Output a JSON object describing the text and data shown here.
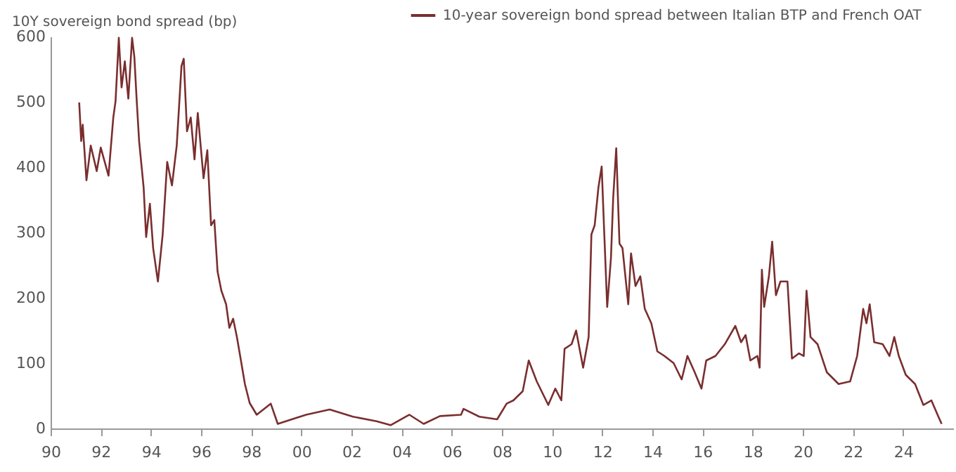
{
  "chart_data": {
    "type": "line",
    "ylabel": "10Y sovereign bond spread (bp)",
    "xlim": [
      1990,
      2026
    ],
    "xticks": [
      {
        "value": 1990,
        "label": "90"
      },
      {
        "value": 1992,
        "label": "92"
      },
      {
        "value": 1994,
        "label": "94"
      },
      {
        "value": 1996,
        "label": "96"
      },
      {
        "value": 1998,
        "label": "98"
      },
      {
        "value": 2000,
        "label": "00"
      },
      {
        "value": 2002,
        "label": "02"
      },
      {
        "value": 2004,
        "label": "04"
      },
      {
        "value": 2006,
        "label": "06"
      },
      {
        "value": 2008,
        "label": "08"
      },
      {
        "value": 2010,
        "label": "10"
      },
      {
        "value": 2012,
        "label": "12"
      },
      {
        "value": 2014,
        "label": "14"
      },
      {
        "value": 2016,
        "label": "16"
      },
      {
        "value": 2018,
        "label": "18"
      },
      {
        "value": 2020,
        "label": "20"
      },
      {
        "value": 2022,
        "label": "22"
      },
      {
        "value": 2024,
        "label": "24"
      }
    ],
    "ylim": [
      0,
      600
    ],
    "yticks": [
      0,
      100,
      200,
      300,
      400,
      500,
      600
    ],
    "grid": false,
    "legend": "top right",
    "x": [
      1991.14,
      1991.22,
      1991.28,
      1991.43,
      1991.6,
      1991.84,
      1992.0,
      1992.31,
      1992.5,
      1992.59,
      1992.72,
      1992.83,
      1992.96,
      1993.1,
      1993.25,
      1993.34,
      1993.43,
      1993.53,
      1993.71,
      1993.81,
      1993.96,
      1994.09,
      1994.28,
      1994.47,
      1994.65,
      1994.84,
      1995.03,
      1995.22,
      1995.31,
      1995.44,
      1995.59,
      1995.74,
      1995.87,
      1996.1,
      1996.25,
      1996.4,
      1996.53,
      1996.66,
      1996.81,
      1997.0,
      1997.13,
      1997.28,
      1997.43,
      1997.56,
      1997.75,
      1997.94,
      1998.22,
      1998.78,
      1999.06,
      1999.62,
      2000.19,
      2001.13,
      2002.06,
      2003.0,
      2003.56,
      2004.31,
      2004.88,
      2005.53,
      2006.37,
      2006.47,
      2007.1,
      2007.81,
      2008.19,
      2008.46,
      2008.83,
      2009.07,
      2009.39,
      2009.85,
      2010.13,
      2010.37,
      2010.5,
      2010.78,
      2010.96,
      2011.24,
      2011.46,
      2011.57,
      2011.7,
      2011.85,
      2011.98,
      2012.07,
      2012.2,
      2012.35,
      2012.44,
      2012.56,
      2012.69,
      2012.81,
      2013.04,
      2013.15,
      2013.33,
      2013.52,
      2013.7,
      2013.96,
      2014.2,
      2014.48,
      2014.85,
      2015.17,
      2015.4,
      2015.69,
      2015.96,
      2016.15,
      2016.52,
      2016.89,
      2017.31,
      2017.54,
      2017.72,
      2017.91,
      2018.19,
      2018.28,
      2018.37,
      2018.46,
      2018.65,
      2018.78,
      2018.93,
      2019.11,
      2019.39,
      2019.57,
      2019.85,
      2020.04,
      2020.15,
      2020.31,
      2020.59,
      2020.96,
      2021.43,
      2021.89,
      2022.17,
      2022.41,
      2022.54,
      2022.67,
      2022.85,
      2023.19,
      2023.46,
      2023.65,
      2023.83,
      2024.11,
      2024.48,
      2024.81,
      2025.13,
      2025.41,
      2025.54
    ],
    "series": [
      {
        "name": "10-year sovereign bond spread between Italian BTP and French OAT",
        "color": "#7a2e2e",
        "values": [
          499,
          440,
          465,
          380,
          433,
          394,
          430,
          387,
          476,
          501,
          598,
          522,
          562,
          505,
          598,
          569,
          505,
          440,
          369,
          293,
          344,
          276,
          225,
          297,
          408,
          372,
          433,
          555,
          566,
          455,
          476,
          412,
          483,
          383,
          426,
          311,
          319,
          240,
          211,
          190,
          154,
          168,
          140,
          111,
          68,
          39,
          21,
          38,
          7,
          14,
          21,
          29,
          18,
          11,
          5,
          21,
          7,
          19,
          21,
          30,
          18,
          14,
          38,
          43,
          57,
          104,
          72,
          36,
          61,
          43,
          122,
          129,
          150,
          93,
          140,
          297,
          311,
          369,
          401,
          311,
          186,
          261,
          354,
          429,
          283,
          276,
          190,
          268,
          218,
          233,
          183,
          161,
          118,
          111,
          100,
          75,
          111,
          86,
          61,
          104,
          111,
          129,
          157,
          132,
          143,
          104,
          111,
          93,
          243,
          186,
          233,
          286,
          204,
          225,
          225,
          107,
          115,
          111,
          211,
          140,
          129,
          86,
          68,
          72,
          111,
          183,
          161,
          190,
          132,
          129,
          111,
          140,
          111,
          82,
          68,
          36,
          43,
          18,
          7
        ]
      }
    ]
  }
}
